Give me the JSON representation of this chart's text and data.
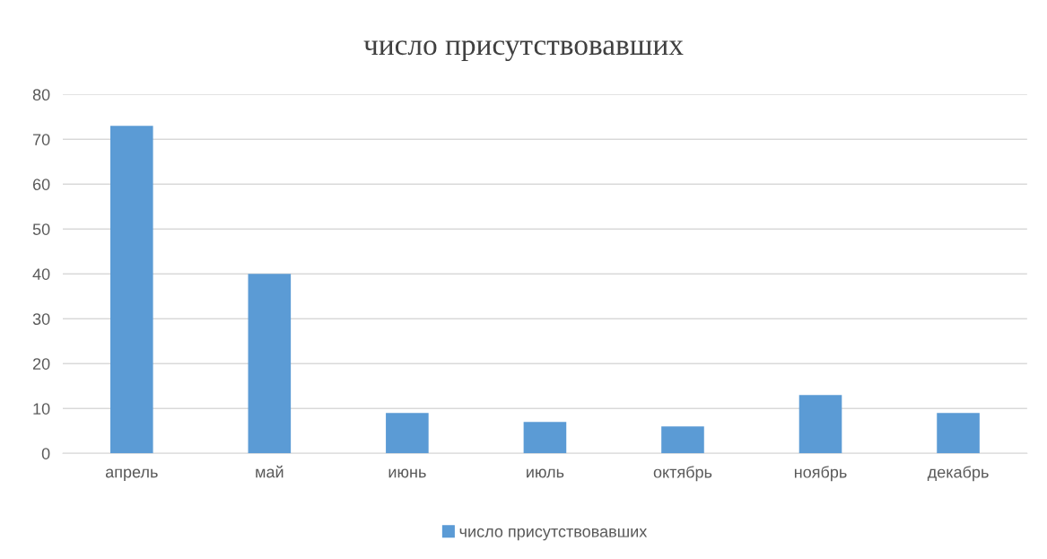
{
  "chart_data": {
    "type": "bar",
    "title": "число присутствовавших",
    "categories": [
      "апрель",
      "май",
      "июнь",
      "июль",
      "октябрь",
      "ноябрь",
      "декабрь"
    ],
    "series": [
      {
        "name": "число присутствовавших",
        "color": "#5b9bd5",
        "values": [
          73,
          40,
          9,
          7,
          6,
          13,
          9
        ]
      }
    ],
    "ylim": [
      0,
      80
    ],
    "yticks": [
      0,
      10,
      20,
      30,
      40,
      50,
      60,
      70,
      80
    ],
    "grid": "y",
    "legend": "bottom"
  }
}
